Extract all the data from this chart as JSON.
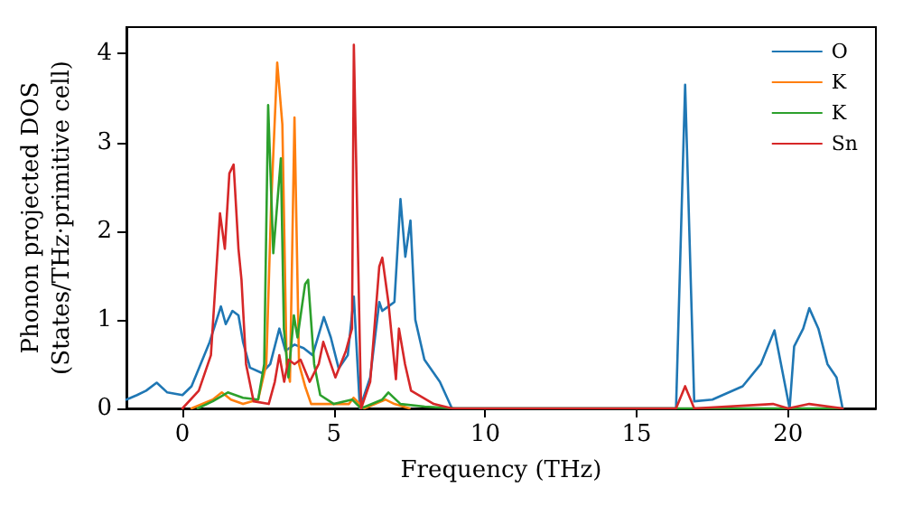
{
  "chart_data": {
    "type": "line",
    "xlabel": "Frequency (THz)",
    "ylabel": "Phonon projected DOS\n(States/THz·primitive cell)",
    "xlim": [
      -1.85,
      22.9
    ],
    "ylim": [
      0,
      4.3
    ],
    "xticks": [
      0,
      5,
      10,
      15,
      20
    ],
    "yticks": [
      0,
      1,
      2,
      3,
      4
    ],
    "grid": false,
    "legend": "top right",
    "marker": "none",
    "line_style": "solid",
    "series": [
      {
        "name": "O",
        "color": "#1f77b4",
        "x": [
          -1.85,
          -1.5,
          -1.2,
          -0.85,
          -0.5,
          0,
          0.3,
          0.6,
          0.9,
          1.27,
          1.43,
          1.65,
          1.85,
          2.0,
          2.23,
          2.62,
          2.9,
          3.2,
          3.4,
          3.7,
          4.0,
          4.3,
          4.67,
          4.9,
          5.16,
          5.46,
          5.66,
          5.86,
          6.2,
          6.5,
          6.6,
          6.8,
          7.0,
          7.2,
          7.36,
          7.53,
          7.69,
          7.99,
          8.5,
          8.9,
          12,
          16.3,
          16.6,
          16.9,
          17.5,
          18.5,
          19.1,
          19.55,
          20.05,
          20.2,
          20.5,
          20.7,
          21.0,
          21.3,
          21.6,
          21.8
        ],
        "values": [
          0.1,
          0.15,
          0.2,
          0.29,
          0.18,
          0.15,
          0.25,
          0.5,
          0.75,
          1.15,
          0.95,
          1.1,
          1.05,
          0.75,
          0.46,
          0.4,
          0.5,
          0.9,
          0.65,
          0.72,
          0.68,
          0.6,
          1.03,
          0.8,
          0.45,
          0.6,
          1.26,
          0,
          0.35,
          1.2,
          1.1,
          1.15,
          1.2,
          2.36,
          1.71,
          2.12,
          1.0,
          0.55,
          0.3,
          0,
          0,
          0,
          3.65,
          0.08,
          0.1,
          0.25,
          0.5,
          0.88,
          0,
          0.7,
          0.9,
          1.13,
          0.9,
          0.5,
          0.35,
          0
        ]
      },
      {
        "name": "K",
        "color": "#ff7f0e",
        "x": [
          0.3,
          1.0,
          1.3,
          1.6,
          2.0,
          2.5,
          2.77,
          2.93,
          3.13,
          3.3,
          3.44,
          3.55,
          3.7,
          3.85,
          4.05,
          4.25,
          5.5,
          5.65,
          6.0,
          6.7,
          7.0,
          7.5
        ],
        "values": [
          0,
          0.1,
          0.18,
          0.1,
          0.05,
          0.1,
          0.5,
          2.3,
          3.9,
          3.2,
          0.5,
          0.3,
          3.28,
          0.5,
          0.25,
          0.05,
          0.05,
          0.12,
          0,
          0.1,
          0.05,
          0
        ]
      },
      {
        "name": "K",
        "color": "#2ca02c",
        "x": [
          0.5,
          1.0,
          1.5,
          2.0,
          2.5,
          2.7,
          2.83,
          3.0,
          3.25,
          3.35,
          3.5,
          3.68,
          3.8,
          4.05,
          4.15,
          4.35,
          4.55,
          5.0,
          5.6,
          5.9,
          6.6,
          6.8,
          7.2,
          8.0,
          9.0,
          12,
          16.6,
          21.8
        ],
        "values": [
          0,
          0.08,
          0.18,
          0.12,
          0.1,
          0.5,
          3.42,
          1.75,
          2.82,
          0.9,
          0.35,
          1.05,
          0.8,
          1.4,
          1.45,
          0.5,
          0.15,
          0.05,
          0.1,
          0,
          0.1,
          0.18,
          0.05,
          0.02,
          0,
          0,
          0,
          0
        ]
      },
      {
        "name": "Sn",
        "color": "#d62728",
        "x": [
          0,
          0.54,
          0.94,
          1.24,
          1.4,
          1.55,
          1.69,
          1.85,
          1.95,
          2.1,
          2.35,
          2.85,
          3.05,
          3.2,
          3.36,
          3.5,
          3.7,
          3.9,
          4.2,
          4.5,
          4.65,
          4.8,
          5.05,
          5.4,
          5.6,
          5.66,
          5.9,
          6.2,
          6.5,
          6.6,
          6.8,
          7.05,
          7.15,
          7.35,
          7.55,
          8.3,
          8.9,
          12,
          16.3,
          16.6,
          16.9,
          19.5,
          20.0,
          20.7,
          21.8
        ],
        "values": [
          0,
          0.2,
          0.6,
          2.2,
          1.8,
          2.65,
          2.75,
          1.8,
          1.45,
          0.5,
          0.08,
          0.05,
          0.3,
          0.6,
          0.3,
          0.55,
          0.5,
          0.55,
          0.3,
          0.5,
          0.75,
          0.6,
          0.35,
          0.65,
          0.9,
          4.1,
          0,
          0.3,
          1.6,
          1.7,
          1.2,
          0.33,
          0.9,
          0.5,
          0.2,
          0.05,
          0,
          0,
          0,
          0.25,
          0,
          0.05,
          0,
          0.05,
          0
        ]
      }
    ]
  }
}
